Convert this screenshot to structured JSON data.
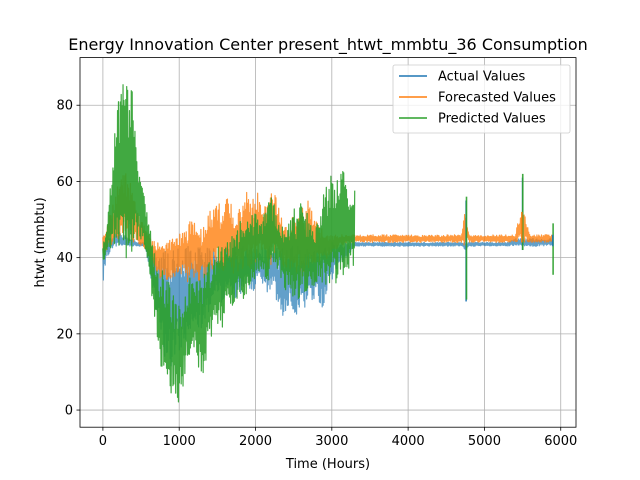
{
  "chart_data": {
    "type": "line",
    "title": "Energy Innovation Center present_htwt_mmbtu_36 Consumption",
    "xlabel": "Time (Hours)",
    "ylabel": "htwt (mmbtu)",
    "xlim": [
      -300,
      6200
    ],
    "ylim": [
      -4.5,
      92.5
    ],
    "xticks": [
      0,
      1000,
      2000,
      3000,
      4000,
      5000,
      6000
    ],
    "xtick_labels": [
      "0",
      "1000",
      "2000",
      "3000",
      "4000",
      "5000",
      "6000"
    ],
    "yticks": [
      0,
      20,
      40,
      60,
      80
    ],
    "ytick_labels": [
      "0",
      "20",
      "40",
      "60",
      "80"
    ],
    "grid": true,
    "legend_position": "top-right",
    "series": [
      {
        "name": "Actual Values",
        "color": "#1f77b4",
        "alpha": 0.7,
        "x": [
          0,
          30,
          60,
          100,
          150,
          200,
          250,
          300,
          350,
          400,
          450,
          500,
          550,
          600,
          650,
          700,
          750,
          800,
          850,
          900,
          950,
          1000,
          1050,
          1100,
          1150,
          1200,
          1250,
          1300,
          1350,
          1400,
          1450,
          1500,
          1550,
          1600,
          1650,
          1700,
          1750,
          1800,
          1850,
          1900,
          1950,
          2000,
          2050,
          2100,
          2150,
          2200,
          2250,
          2300,
          2350,
          2400,
          2450,
          2500,
          2550,
          2600,
          2650,
          2700,
          2750,
          2800,
          2850,
          2900,
          2950,
          3000,
          3100,
          3200,
          3300,
          3400,
          3500,
          3600,
          3700,
          3800,
          3900,
          4000,
          4100,
          4200,
          4300,
          4400,
          4500,
          4600,
          4700,
          4750,
          4800,
          4900,
          5000,
          5100,
          5200,
          5300,
          5400,
          5500,
          5600,
          5700,
          5800,
          5900
        ],
        "lower": [
          32,
          36,
          40,
          42,
          43,
          43,
          43,
          43,
          43,
          43,
          43,
          43,
          43,
          38,
          30,
          24,
          18,
          14,
          12,
          10,
          12,
          14,
          18,
          16,
          20,
          24,
          22,
          20,
          24,
          26,
          28,
          30,
          28,
          30,
          32,
          30,
          28,
          30,
          32,
          34,
          30,
          32,
          34,
          32,
          30,
          32,
          34,
          22,
          24,
          26,
          28,
          26,
          24,
          28,
          26,
          30,
          28,
          30,
          26,
          28,
          32,
          34,
          38,
          40,
          43,
          43,
          43,
          43,
          43,
          43,
          43,
          43,
          43,
          43,
          43,
          43,
          43,
          43,
          43,
          42,
          43,
          43,
          43,
          43,
          43,
          43,
          43,
          43,
          43,
          43,
          43,
          43
        ],
        "upper": [
          45,
          47,
          46,
          45,
          46,
          47,
          46,
          46,
          45,
          45,
          44,
          44,
          44,
          43,
          43,
          43,
          43,
          43,
          43,
          43,
          43,
          43,
          43,
          43,
          43,
          43,
          43,
          43,
          43,
          43,
          43,
          43,
          43,
          43,
          43,
          43,
          43,
          43,
          43,
          43,
          43,
          43,
          43,
          43,
          43,
          43,
          43,
          43,
          43,
          43,
          43,
          43,
          43,
          43,
          43,
          43,
          43,
          43,
          43,
          43,
          44,
          44,
          44,
          44,
          44,
          44,
          44,
          44,
          44,
          44,
          44,
          44,
          44,
          44,
          44,
          44,
          44,
          44,
          44,
          44,
          44,
          44,
          44,
          44,
          44,
          44,
          45,
          45,
          45,
          45,
          45,
          45
        ]
      },
      {
        "name": "Forecasted Values",
        "color": "#ff7f0e",
        "alpha": 0.8,
        "x": [
          0,
          30,
          60,
          100,
          150,
          200,
          250,
          300,
          350,
          400,
          450,
          500,
          550,
          600,
          650,
          700,
          750,
          800,
          850,
          900,
          950,
          1000,
          1050,
          1100,
          1150,
          1200,
          1250,
          1300,
          1350,
          1400,
          1450,
          1500,
          1550,
          1600,
          1650,
          1700,
          1750,
          1800,
          1850,
          1900,
          1950,
          2000,
          2050,
          2100,
          2150,
          2200,
          2250,
          2300,
          2350,
          2400,
          2450,
          2500,
          2550,
          2600,
          2650,
          2700,
          2750,
          2800,
          2850,
          2900,
          2950,
          3000,
          3100,
          3200,
          3300,
          3400,
          3500,
          3600,
          3700,
          3800,
          3900,
          4000,
          4100,
          4200,
          4300,
          4400,
          4500,
          4600,
          4700,
          4750,
          4800,
          4900,
          5000,
          5100,
          5200,
          5300,
          5400,
          5500,
          5600,
          5700,
          5800,
          5900
        ],
        "lower": [
          40,
          41,
          42,
          43,
          44,
          45,
          46,
          45,
          44,
          44,
          43,
          43,
          42,
          40,
          38,
          36,
          34,
          34,
          34,
          34,
          34,
          35,
          34,
          33,
          34,
          35,
          34,
          33,
          34,
          35,
          36,
          36,
          35,
          36,
          37,
          36,
          35,
          36,
          37,
          38,
          37,
          38,
          39,
          38,
          37,
          38,
          39,
          38,
          38,
          37,
          36,
          35,
          36,
          35,
          36,
          37,
          36,
          37,
          38,
          39,
          40,
          41,
          43,
          44,
          44,
          44,
          44,
          44,
          44,
          44,
          44,
          44,
          44,
          44,
          44,
          44,
          44,
          44,
          44,
          43,
          44,
          44,
          44,
          44,
          44,
          44,
          44,
          44,
          44,
          44,
          44,
          44
        ],
        "upper": [
          46,
          47,
          50,
          52,
          55,
          60,
          62,
          62,
          60,
          58,
          54,
          50,
          48,
          46,
          45,
          44,
          44,
          44,
          44,
          45,
          46,
          46,
          47,
          48,
          50,
          52,
          50,
          48,
          50,
          52,
          54,
          56,
          52,
          55,
          56,
          54,
          52,
          55,
          56,
          58,
          55,
          57,
          59,
          56,
          55,
          57,
          59,
          54,
          50,
          48,
          48,
          52,
          50,
          54,
          53,
          56,
          52,
          50,
          48,
          47,
          46,
          46,
          46,
          46,
          46,
          46,
          46,
          46,
          46,
          46,
          46,
          46,
          46,
          46,
          46,
          46,
          46,
          46,
          46,
          53,
          46,
          46,
          46,
          46,
          46,
          46,
          46,
          54,
          46,
          46,
          46,
          46
        ]
      },
      {
        "name": "Predicted Values",
        "color": "#2ca02c",
        "alpha": 0.9,
        "x": [
          0,
          30,
          60,
          100,
          150,
          200,
          250,
          300,
          350,
          400,
          450,
          500,
          550,
          600,
          650,
          700,
          750,
          800,
          850,
          900,
          950,
          1000,
          1050,
          1100,
          1150,
          1200,
          1250,
          1300,
          1350,
          1400,
          1450,
          1500,
          1550,
          1600,
          1650,
          1700,
          1750,
          1800,
          1850,
          1900,
          1950,
          2000,
          2050,
          2100,
          2150,
          2200,
          2250,
          2300,
          2350,
          2400,
          2450,
          2500,
          2550,
          2600,
          2650,
          2700,
          2750,
          2800,
          2850,
          2900,
          2950,
          3000,
          3100,
          3200,
          3300
        ],
        "lower": [
          38,
          40,
          41,
          42,
          43,
          42,
          40,
          38,
          40,
          42,
          43,
          44,
          42,
          38,
          28,
          20,
          12,
          8,
          6,
          4,
          2,
          1,
          6,
          10,
          12,
          14,
          10,
          8,
          12,
          16,
          20,
          22,
          20,
          24,
          28,
          26,
          28,
          30,
          28,
          32,
          30,
          34,
          36,
          34,
          32,
          36,
          38,
          36,
          34,
          30,
          28,
          30,
          28,
          30,
          28,
          32,
          30,
          32,
          34,
          32,
          30,
          32,
          34,
          36,
          38
        ],
        "upper": [
          44,
          46,
          50,
          60,
          75,
          82,
          85,
          89,
          88,
          84,
          72,
          62,
          56,
          50,
          44,
          40,
          38,
          36,
          34,
          32,
          30,
          28,
          30,
          34,
          36,
          38,
          36,
          34,
          38,
          40,
          42,
          44,
          42,
          46,
          44,
          48,
          46,
          50,
          48,
          50,
          52,
          54,
          50,
          52,
          54,
          56,
          54,
          50,
          48,
          50,
          52,
          54,
          52,
          56,
          54,
          50,
          48,
          50,
          54,
          58,
          60,
          62,
          64,
          62,
          58
        ]
      }
    ],
    "spikes": [
      {
        "series": "Actual Values",
        "x": 4760,
        "min": 28.5,
        "max": 55
      },
      {
        "series": "Predicted Values",
        "x": 4765,
        "min": 29,
        "max": 56
      },
      {
        "series": "Actual Values",
        "x": 5500,
        "min": 42,
        "max": 61
      },
      {
        "series": "Predicted Values",
        "x": 5502,
        "min": 42,
        "max": 62
      },
      {
        "series": "Forecasted Values",
        "x": 5490,
        "min": 44,
        "max": 52
      },
      {
        "series": "Predicted Values",
        "x": 5900,
        "min": 35.5,
        "max": 49
      },
      {
        "series": "Actual Values",
        "x": 5895,
        "min": 43,
        "max": 46
      }
    ]
  }
}
